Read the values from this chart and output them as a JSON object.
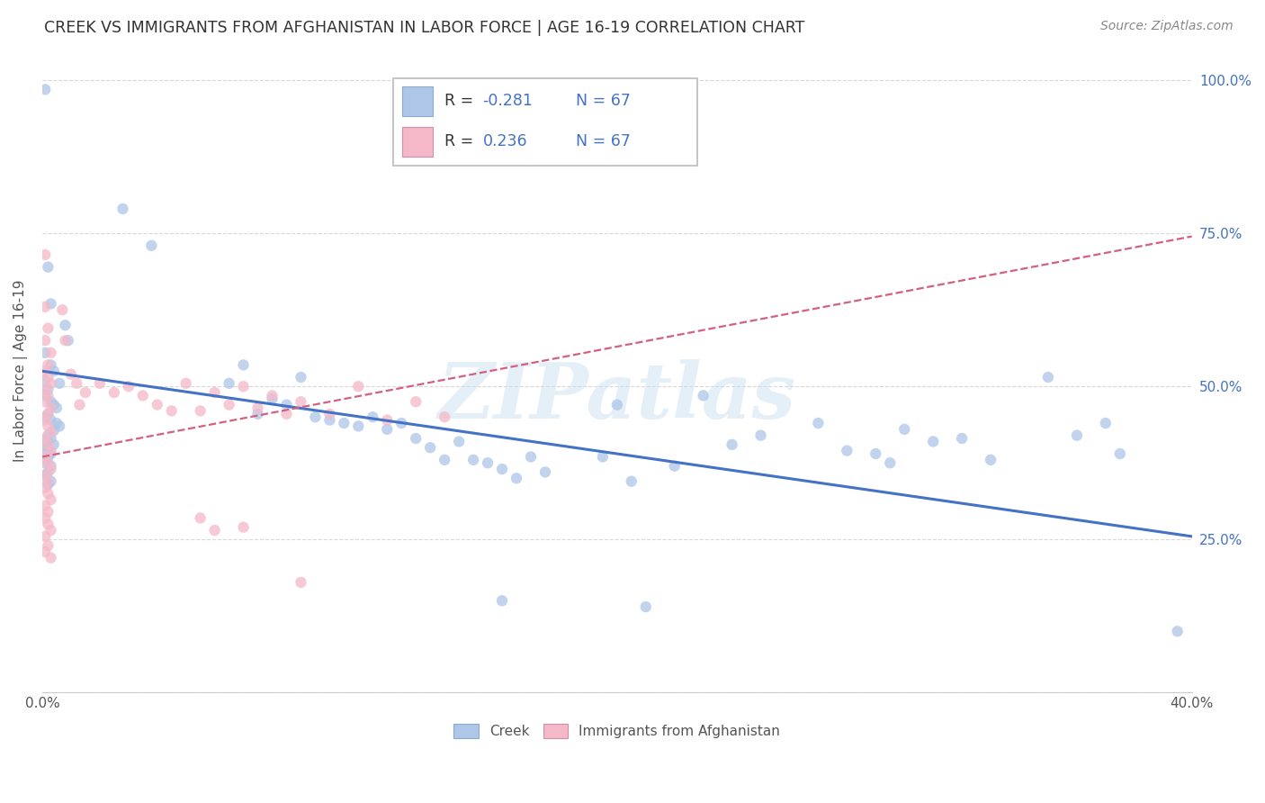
{
  "title": "CREEK VS IMMIGRANTS FROM AFGHANISTAN IN LABOR FORCE | AGE 16-19 CORRELATION CHART",
  "source": "Source: ZipAtlas.com",
  "ylabel": "In Labor Force | Age 16-19",
  "xlim": [
    0.0,
    0.4
  ],
  "ylim": [
    0.0,
    1.05
  ],
  "ytick_vals": [
    0.0,
    0.25,
    0.5,
    0.75,
    1.0
  ],
  "ytick_labels": [
    "",
    "25.0%",
    "50.0%",
    "75.0%",
    "100.0%"
  ],
  "xtick_vals": [
    0.0,
    0.05,
    0.1,
    0.15,
    0.2,
    0.25,
    0.3,
    0.35,
    0.4
  ],
  "creek_color": "#aec6e8",
  "creek_line_color": "#4472c4",
  "afghan_color": "#f5b8c8",
  "afghan_line_color": "#d46080",
  "R_creek": "-0.281",
  "R_afghan": "0.236",
  "N": 67,
  "creek_line_x": [
    0.0,
    0.4
  ],
  "creek_line_y": [
    0.525,
    0.255
  ],
  "afghan_line_x": [
    0.0,
    0.4
  ],
  "afghan_line_y": [
    0.385,
    0.745
  ],
  "watermark": "ZIPatlas",
  "background_color": "#ffffff",
  "grid_color": "#d8d8d8",
  "creek_scatter": [
    [
      0.001,
      0.985
    ],
    [
      0.028,
      0.79
    ],
    [
      0.038,
      0.73
    ],
    [
      0.002,
      0.695
    ],
    [
      0.003,
      0.635
    ],
    [
      0.008,
      0.6
    ],
    [
      0.009,
      0.575
    ],
    [
      0.001,
      0.555
    ],
    [
      0.003,
      0.535
    ],
    [
      0.004,
      0.525
    ],
    [
      0.001,
      0.51
    ],
    [
      0.006,
      0.505
    ],
    [
      0.002,
      0.495
    ],
    [
      0.001,
      0.485
    ],
    [
      0.003,
      0.475
    ],
    [
      0.004,
      0.47
    ],
    [
      0.005,
      0.465
    ],
    [
      0.002,
      0.455
    ],
    [
      0.001,
      0.45
    ],
    [
      0.003,
      0.445
    ],
    [
      0.005,
      0.44
    ],
    [
      0.006,
      0.435
    ],
    [
      0.004,
      0.428
    ],
    [
      0.002,
      0.42
    ],
    [
      0.003,
      0.415
    ],
    [
      0.001,
      0.41
    ],
    [
      0.004,
      0.405
    ],
    [
      0.002,
      0.4
    ],
    [
      0.001,
      0.395
    ],
    [
      0.003,
      0.39
    ],
    [
      0.002,
      0.385
    ],
    [
      0.001,
      0.375
    ],
    [
      0.003,
      0.37
    ],
    [
      0.002,
      0.36
    ],
    [
      0.001,
      0.355
    ],
    [
      0.003,
      0.345
    ],
    [
      0.002,
      0.34
    ],
    [
      0.07,
      0.535
    ],
    [
      0.065,
      0.505
    ],
    [
      0.08,
      0.48
    ],
    [
      0.075,
      0.455
    ],
    [
      0.09,
      0.515
    ],
    [
      0.085,
      0.47
    ],
    [
      0.095,
      0.45
    ],
    [
      0.1,
      0.445
    ],
    [
      0.105,
      0.44
    ],
    [
      0.11,
      0.435
    ],
    [
      0.115,
      0.45
    ],
    [
      0.12,
      0.43
    ],
    [
      0.125,
      0.44
    ],
    [
      0.13,
      0.415
    ],
    [
      0.135,
      0.4
    ],
    [
      0.14,
      0.38
    ],
    [
      0.145,
      0.41
    ],
    [
      0.15,
      0.38
    ],
    [
      0.155,
      0.375
    ],
    [
      0.16,
      0.365
    ],
    [
      0.165,
      0.35
    ],
    [
      0.17,
      0.385
    ],
    [
      0.175,
      0.36
    ],
    [
      0.195,
      0.385
    ],
    [
      0.2,
      0.47
    ],
    [
      0.205,
      0.345
    ],
    [
      0.23,
      0.485
    ],
    [
      0.22,
      0.37
    ],
    [
      0.24,
      0.405
    ],
    [
      0.25,
      0.42
    ],
    [
      0.27,
      0.44
    ],
    [
      0.28,
      0.395
    ],
    [
      0.29,
      0.39
    ],
    [
      0.295,
      0.375
    ],
    [
      0.3,
      0.43
    ],
    [
      0.31,
      0.41
    ],
    [
      0.32,
      0.415
    ],
    [
      0.33,
      0.38
    ],
    [
      0.35,
      0.515
    ],
    [
      0.36,
      0.42
    ],
    [
      0.37,
      0.44
    ],
    [
      0.375,
      0.39
    ],
    [
      0.16,
      0.15
    ],
    [
      0.21,
      0.14
    ],
    [
      0.395,
      0.1
    ]
  ],
  "afghan_scatter": [
    [
      0.001,
      0.715
    ],
    [
      0.001,
      0.63
    ],
    [
      0.002,
      0.595
    ],
    [
      0.001,
      0.575
    ],
    [
      0.003,
      0.555
    ],
    [
      0.002,
      0.535
    ],
    [
      0.001,
      0.525
    ],
    [
      0.002,
      0.515
    ],
    [
      0.003,
      0.505
    ],
    [
      0.001,
      0.495
    ],
    [
      0.002,
      0.485
    ],
    [
      0.001,
      0.475
    ],
    [
      0.003,
      0.465
    ],
    [
      0.002,
      0.455
    ],
    [
      0.001,
      0.445
    ],
    [
      0.002,
      0.435
    ],
    [
      0.003,
      0.425
    ],
    [
      0.001,
      0.415
    ],
    [
      0.002,
      0.405
    ],
    [
      0.003,
      0.395
    ],
    [
      0.001,
      0.385
    ],
    [
      0.002,
      0.375
    ],
    [
      0.003,
      0.365
    ],
    [
      0.001,
      0.355
    ],
    [
      0.002,
      0.345
    ],
    [
      0.001,
      0.335
    ],
    [
      0.002,
      0.325
    ],
    [
      0.003,
      0.315
    ],
    [
      0.001,
      0.305
    ],
    [
      0.002,
      0.295
    ],
    [
      0.001,
      0.285
    ],
    [
      0.002,
      0.275
    ],
    [
      0.003,
      0.265
    ],
    [
      0.001,
      0.255
    ],
    [
      0.002,
      0.24
    ],
    [
      0.001,
      0.23
    ],
    [
      0.003,
      0.22
    ],
    [
      0.007,
      0.625
    ],
    [
      0.008,
      0.575
    ],
    [
      0.01,
      0.52
    ],
    [
      0.012,
      0.505
    ],
    [
      0.015,
      0.49
    ],
    [
      0.013,
      0.47
    ],
    [
      0.02,
      0.505
    ],
    [
      0.025,
      0.49
    ],
    [
      0.03,
      0.5
    ],
    [
      0.035,
      0.485
    ],
    [
      0.04,
      0.47
    ],
    [
      0.045,
      0.46
    ],
    [
      0.05,
      0.505
    ],
    [
      0.055,
      0.46
    ],
    [
      0.06,
      0.49
    ],
    [
      0.065,
      0.47
    ],
    [
      0.07,
      0.5
    ],
    [
      0.075,
      0.465
    ],
    [
      0.08,
      0.485
    ],
    [
      0.085,
      0.455
    ],
    [
      0.09,
      0.475
    ],
    [
      0.1,
      0.455
    ],
    [
      0.11,
      0.5
    ],
    [
      0.12,
      0.445
    ],
    [
      0.13,
      0.475
    ],
    [
      0.14,
      0.45
    ],
    [
      0.055,
      0.285
    ],
    [
      0.06,
      0.265
    ],
    [
      0.07,
      0.27
    ],
    [
      0.09,
      0.18
    ]
  ]
}
